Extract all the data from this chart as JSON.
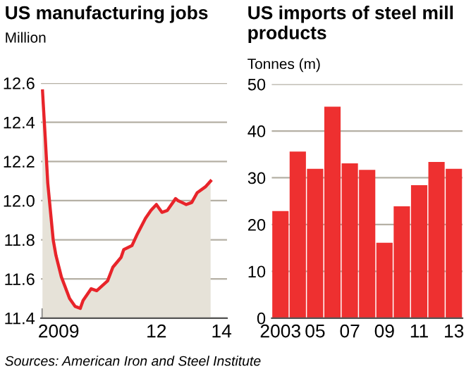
{
  "chart_data": [
    {
      "type": "line",
      "title": "US manufacturing jobs",
      "subtitle": "Million",
      "x": [
        "2009-01",
        "2009-02",
        "2009-03",
        "2009-05",
        "2009-06",
        "2009-08",
        "2009-11",
        "2010-01",
        "2010-03",
        "2010-04",
        "2010-07",
        "2010-09",
        "2011-01",
        "2011-03",
        "2011-06",
        "2011-07",
        "2011-10",
        "2011-12",
        "2012-03",
        "2012-05",
        "2012-07",
        "2012-09",
        "2012-11",
        "2013-02",
        "2013-03",
        "2013-06",
        "2013-08",
        "2013-10",
        "2014-01",
        "2014-03"
      ],
      "series": [
        {
          "type": "area",
          "color": "#e8242a",
          "values": [
            12.56,
            12.32,
            12.09,
            11.8,
            11.72,
            11.61,
            11.5,
            11.46,
            11.45,
            11.49,
            11.55,
            11.54,
            11.59,
            11.66,
            11.71,
            11.75,
            11.77,
            11.83,
            11.91,
            11.95,
            11.98,
            11.94,
            11.95,
            12.01,
            12.0,
            11.98,
            11.99,
            12.04,
            12.07,
            12.1
          ]
        }
      ],
      "xlim": [
        "2008-12-15",
        "2014-09-01"
      ],
      "ylim": [
        11.4,
        12.6
      ],
      "xticks": [
        {
          "value": "2009-01-01",
          "label": null
        },
        {
          "value": "2010-01-01",
          "label": null
        },
        {
          "value": "2011-01-01",
          "label": null
        },
        {
          "value": "2012-01-01",
          "label": null
        },
        {
          "value": "2013-01-01",
          "label": null
        },
        {
          "value": "2014-01-01",
          "label": null
        },
        {
          "value": "2009-07-01",
          "label": "2009"
        },
        {
          "value": "2012-07-01",
          "label": "12"
        },
        {
          "value": "2014-07-01",
          "label": "14"
        }
      ],
      "yticks": [
        11.4,
        11.6,
        11.8,
        {
          "value": 12.0,
          "label": "12.0"
        },
        12.2,
        12.4,
        12.6
      ],
      "grid": "y",
      "legend": false,
      "annotations": [
        "Sources: American Iron and Steel Institute"
      ]
    },
    {
      "type": "bar",
      "title": "US imports of steel mill products",
      "subtitle": "Tonnes (m)",
      "categories": [
        "2003",
        null,
        "05",
        null,
        "07",
        null,
        "09",
        null,
        "11",
        null,
        "13"
      ],
      "values": [
        22.9,
        35.6,
        31.9,
        45.2,
        33.1,
        31.7,
        16.1,
        23.9,
        28.4,
        33.4,
        31.9
      ],
      "color": "#ee3030",
      "ylim": [
        0,
        50
      ],
      "yticks": [
        0,
        10,
        20,
        30,
        40,
        50
      ],
      "grid": "y",
      "legend": false
    }
  ]
}
